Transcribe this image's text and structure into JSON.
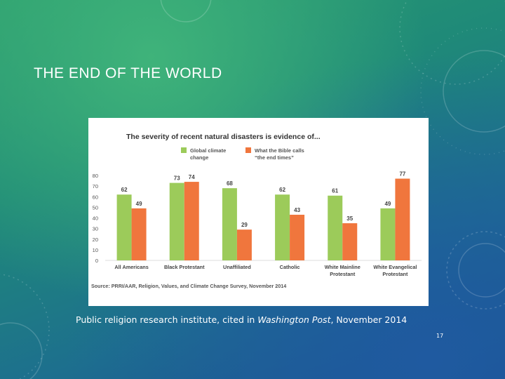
{
  "slide": {
    "title": "THE END OF THE WORLD",
    "caption_prefix": "Public religion research institute, cited in ",
    "caption_italic": "Washington Post",
    "caption_suffix": ", November 2014",
    "page_number": "17"
  },
  "colors": {
    "series_a": "#9ccb5a",
    "series_b": "#f0763d"
  },
  "chart_data": {
    "type": "bar",
    "title": "The severity of recent natural disasters is evidence of...",
    "categories": [
      [
        "All Americans"
      ],
      [
        "Black Protestant"
      ],
      [
        "Unaffiliated"
      ],
      [
        "Catholic"
      ],
      [
        "White Mainline",
        "Protestant"
      ],
      [
        "White Evangelical",
        "Protestant"
      ]
    ],
    "series": [
      {
        "name": [
          "Global climate",
          "change"
        ],
        "values": [
          62,
          73,
          68,
          62,
          61,
          49
        ]
      },
      {
        "name": [
          "What the Bible calls",
          "“the end times”"
        ],
        "values": [
          49,
          74,
          29,
          43,
          35,
          77
        ]
      }
    ],
    "y_ticks": [
      0,
      10,
      20,
      30,
      40,
      50,
      60,
      70,
      80
    ],
    "ylim": [
      0,
      80
    ],
    "source": "Source: PRRI/AAR, Religion, Values, and Climate Change Survey, November 2014",
    "legend_position": "top-center"
  }
}
